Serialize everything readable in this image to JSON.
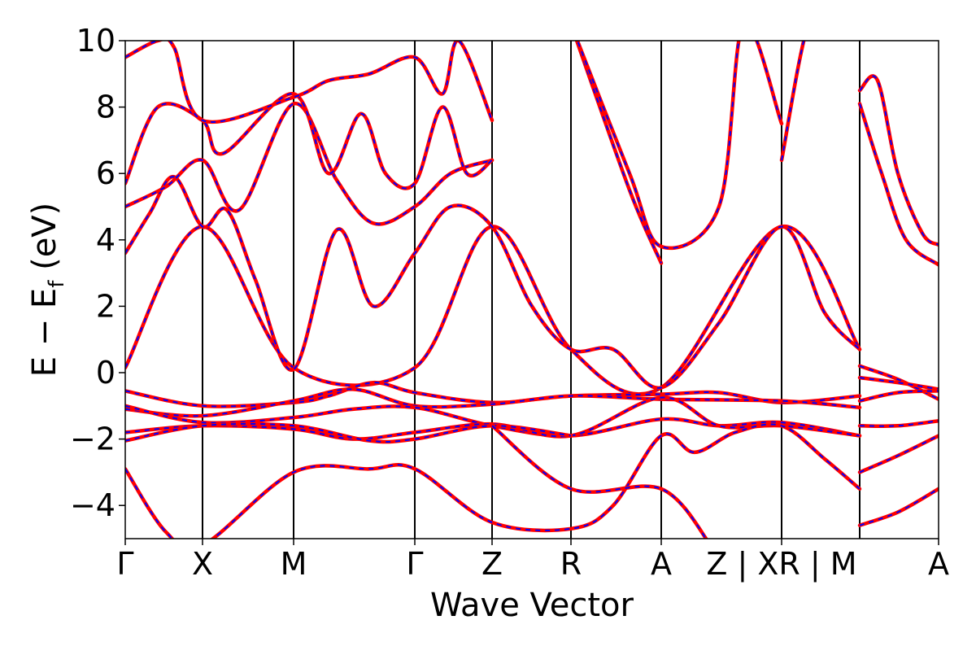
{
  "chart_data": {
    "type": "line",
    "xlabel": "Wave Vector",
    "ylabel_main": "E − E",
    "ylabel_sub": "f",
    "ylabel_unit": " (eV)",
    "ylim": [
      -5,
      10
    ],
    "y_ticks": [
      "−4",
      "−2",
      "0",
      "2",
      "4",
      "6",
      "8",
      "10"
    ],
    "y_tick_values": [
      -4,
      -2,
      0,
      2,
      4,
      6,
      8,
      10
    ],
    "kpath_ticks": [
      {
        "label": "Γ",
        "x": 0.0
      },
      {
        "label": "X",
        "x": 0.095
      },
      {
        "label": "M",
        "x": 0.207
      },
      {
        "label": "Γ",
        "x": 0.356
      },
      {
        "label": "Z",
        "x": 0.451
      },
      {
        "label": "R",
        "x": 0.548
      },
      {
        "label": "A",
        "x": 0.659
      },
      {
        "label": "Z | XR | M",
        "x": 0.807
      },
      {
        "label": "A",
        "x": 1.0
      }
    ],
    "break_x": 0.903,
    "xlim": [
      0,
      1
    ],
    "colors": {
      "dft": "#ff0000",
      "model": "#0000ff",
      "vline": "#000000"
    },
    "series": [
      {
        "name": "",
        "x": [
          0,
          0.095,
          0.207,
          0.356,
          0.451,
          0.548,
          0.659,
          0.807,
          0.903
        ],
        "y": [
          0.15,
          4.4,
          0.15,
          0.15,
          4.4,
          0.7,
          -0.45,
          4.4,
          0.7
        ]
      },
      {
        "name": "",
        "x": [
          0,
          0.03,
          0.06,
          0.095,
          0.125,
          0.16,
          0.207,
          0.26,
          0.305,
          0.356,
          0.4,
          0.451,
          0.5,
          0.548,
          0.6,
          0.659,
          0.73,
          0.807,
          0.86,
          0.903
        ],
        "y": [
          3.6,
          4.8,
          5.9,
          4.4,
          4.9,
          2.8,
          0.1,
          4.3,
          2.0,
          3.6,
          5.0,
          4.4,
          2.0,
          0.7,
          0.7,
          -0.45,
          1.5,
          4.4,
          1.8,
          0.7
        ]
      },
      {
        "name": "",
        "x": [
          0,
          0.05,
          0.095,
          0.14,
          0.207,
          0.26,
          0.305,
          0.356,
          0.4,
          0.451
        ],
        "y": [
          5.0,
          5.6,
          6.4,
          4.9,
          8.1,
          5.8,
          4.5,
          5.0,
          6.0,
          6.4
        ]
      },
      {
        "name": "",
        "x": [
          0,
          0.04,
          0.095,
          0.12,
          0.207,
          0.25,
          0.29,
          0.32,
          0.356,
          0.39,
          0.42,
          0.451
        ],
        "y": [
          5.7,
          8.0,
          7.6,
          6.6,
          8.4,
          6.0,
          7.8,
          6.0,
          5.7,
          8.0,
          6.0,
          6.4
        ]
      },
      {
        "name": "",
        "x": [
          0,
          0.04,
          0.06,
          0.095,
          0.207,
          0.25,
          0.3,
          0.356,
          0.39,
          0.41,
          0.451
        ],
        "y": [
          9.5,
          10.0,
          9.8,
          7.6,
          8.3,
          8.8,
          9.0,
          9.5,
          8.4,
          10.0,
          7.6
        ]
      },
      {
        "name": "",
        "x": [
          0,
          0.095,
          0.207,
          0.25,
          0.305,
          0.356,
          0.451,
          0.548,
          0.659,
          0.73,
          0.807,
          0.903
        ],
        "y": [
          -0.55,
          -1.0,
          -0.9,
          -0.7,
          -0.3,
          -0.6,
          -0.9,
          -0.7,
          -0.65,
          -0.6,
          -0.9,
          -0.7
        ]
      },
      {
        "name": "",
        "x": [
          0,
          0.095,
          0.207,
          0.28,
          0.356,
          0.451,
          0.548,
          0.659,
          0.807,
          0.903
        ],
        "y": [
          -1.1,
          -1.3,
          -0.85,
          -0.5,
          -1.0,
          -0.95,
          -0.7,
          -0.8,
          -0.85,
          -1.05
        ]
      },
      {
        "name": "",
        "x": [
          0,
          0.095,
          0.207,
          0.28,
          0.356,
          0.451,
          0.548,
          0.659,
          0.73,
          0.807,
          0.903
        ],
        "y": [
          -1.0,
          -1.5,
          -1.35,
          -1.1,
          -1.05,
          -1.6,
          -1.9,
          -1.4,
          -1.6,
          -1.5,
          -1.9
        ]
      },
      {
        "name": "",
        "x": [
          0,
          0.095,
          0.207,
          0.28,
          0.356,
          0.451,
          0.548,
          0.659,
          0.73,
          0.807,
          0.903
        ],
        "y": [
          -1.8,
          -1.6,
          -1.7,
          -2.0,
          -1.8,
          -1.55,
          -1.9,
          -0.75,
          -1.6,
          -1.6,
          -1.9
        ]
      },
      {
        "name": "",
        "x": [
          0,
          0.095,
          0.207,
          0.3,
          0.356,
          0.451,
          0.548
        ],
        "y": [
          -2.05,
          -1.6,
          -1.6,
          -2.05,
          -2.0,
          -1.6,
          -1.9
        ]
      },
      {
        "name": "",
        "x": [
          0,
          0.05,
          0.095,
          0.207,
          0.3,
          0.356,
          0.45,
          0.548,
          0.6,
          0.659,
          0.7,
          0.75,
          0.807,
          0.86,
          0.903
        ],
        "y": [
          -2.9,
          -4.8,
          -5.2,
          -3.0,
          -2.9,
          -2.9,
          -4.5,
          -4.7,
          -4.0,
          -1.9,
          -2.4,
          -1.8,
          -1.6,
          -2.6,
          -3.5
        ]
      },
      {
        "name": "",
        "x": [
          0.451,
          0.548,
          0.659,
          0.72
        ],
        "y": [
          -1.6,
          -3.5,
          -3.5,
          -5.2
        ]
      },
      {
        "name": "",
        "x": [
          0.548,
          0.62,
          0.659
        ],
        "y": [
          10.5,
          5.5,
          3.3
        ]
      },
      {
        "name": "",
        "x": [
          0.548,
          0.62,
          0.659,
          0.73,
          0.76,
          0.807
        ],
        "y": [
          10.5,
          6.0,
          3.8,
          5.0,
          10.5,
          7.5
        ]
      },
      {
        "name": "",
        "x": [
          0.807,
          0.84,
          0.87,
          0.903
        ],
        "y": [
          6.4,
          10.5,
          10.5,
          10.5
        ]
      },
      {
        "name": "",
        "x": [
          0.903,
          0.925,
          0.95,
          0.98,
          1.0
        ],
        "y": [
          8.5,
          8.8,
          6.0,
          4.2,
          3.85
        ]
      },
      {
        "name": "",
        "x": [
          0.903,
          0.93,
          0.96,
          1.0
        ],
        "y": [
          8.1,
          6.0,
          4.0,
          3.25
        ]
      },
      {
        "name": "",
        "x": [
          0.903,
          0.95,
          1.0
        ],
        "y": [
          0.2,
          -0.2,
          -0.8
        ]
      },
      {
        "name": "",
        "x": [
          0.903,
          0.95,
          1.0
        ],
        "y": [
          -0.15,
          -0.3,
          -0.5
        ]
      },
      {
        "name": "",
        "x": [
          0.903,
          0.95,
          1.0
        ],
        "y": [
          -0.85,
          -0.6,
          -0.55
        ]
      },
      {
        "name": "",
        "x": [
          0.903,
          0.95,
          1.0
        ],
        "y": [
          -1.6,
          -1.6,
          -1.45
        ]
      },
      {
        "name": "",
        "x": [
          0.903,
          0.95,
          1.0
        ],
        "y": [
          -3.0,
          -2.5,
          -1.9
        ]
      },
      {
        "name": "",
        "x": [
          0.903,
          0.95,
          1.0
        ],
        "y": [
          -4.6,
          -4.2,
          -3.5
        ]
      }
    ]
  }
}
